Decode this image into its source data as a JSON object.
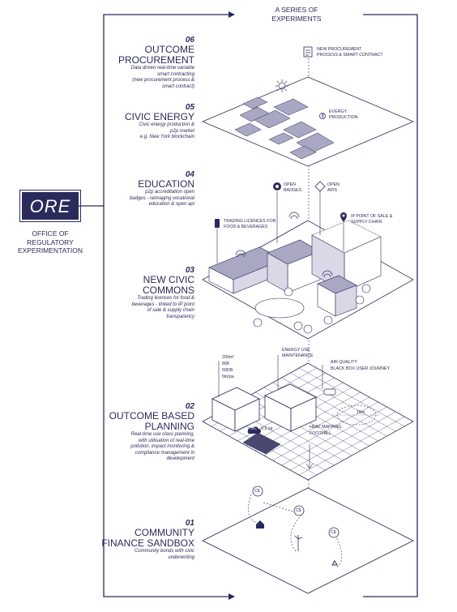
{
  "top_label": "A SERIES OF\nEXPERIMENTS",
  "office": {
    "logo_text": "ORE",
    "name": "OFFICE OF\nREGULATORY\nEXPERIMENTATION"
  },
  "layers": [
    {
      "number": "06",
      "title": "OUTCOME\nPROCUREMENT",
      "description": "Data driven real-time variable\nsmart contracting\n(new procurement process &\nsmart contract)"
    },
    {
      "number": "05",
      "title": "CIVIC ENERGY",
      "description": "Civic energy production &\np2p market\ne.g. New York blockchain"
    },
    {
      "number": "04",
      "title": "EDUCATION",
      "description": "p2p accreditation open\nbadges - reimaging vocational\neducation & open api"
    },
    {
      "number": "03",
      "title": "NEW CIVIC\nCOMMONS",
      "description": "Trading licences for food &\nbeverages - linked to IP point\nof sale & supply chain\ntransparency"
    },
    {
      "number": "02",
      "title": "OUTCOME BASED\nPLANNING",
      "description": "Real-time use class planning,\nwith utilisation of real-time\npollution, impact monitoring &\ncompliance management in\ndevelopment"
    },
    {
      "number": "01",
      "title": "COMMUNITY\nFINANCE SANDBOX",
      "description": "Community bonds with civic\nunderwriting"
    }
  ],
  "annotations": {
    "procurement": "NEW PROCUREMENT\nPROCESS & SMART CONTRACT",
    "energy": "EVERGY\nPRODUCTION",
    "open_badges": "OPEN\nBADGES",
    "open_apis": "OPEN\nAPIS",
    "trading": "TRADING LICENCES FOR\nFOOD & BEVERAGES",
    "ip_point": "IP POINT OF SALE &\nSUPPLY CHAIN",
    "energy_use": "ENERGY USE\nMAINTENANCE",
    "air_quality": "AIR QUALITY",
    "black_box": "BLACK BOX USER JOURNEY",
    "heat_mapping": "HEAT MAPPING",
    "footfall": "FOOTFALL",
    "area": "200m²",
    "price": "80k",
    "noise": "50db",
    "throughput": "5tn/pa",
    "co2": "CO₂",
    "sqm": "0.3 sq",
    "distance": "15m",
    "currency": "C$"
  },
  "colors": {
    "ink": "#2b2a5c",
    "roof": "#a9a8c2",
    "light": "#d9d8e6",
    "paper": "#ffffff"
  }
}
